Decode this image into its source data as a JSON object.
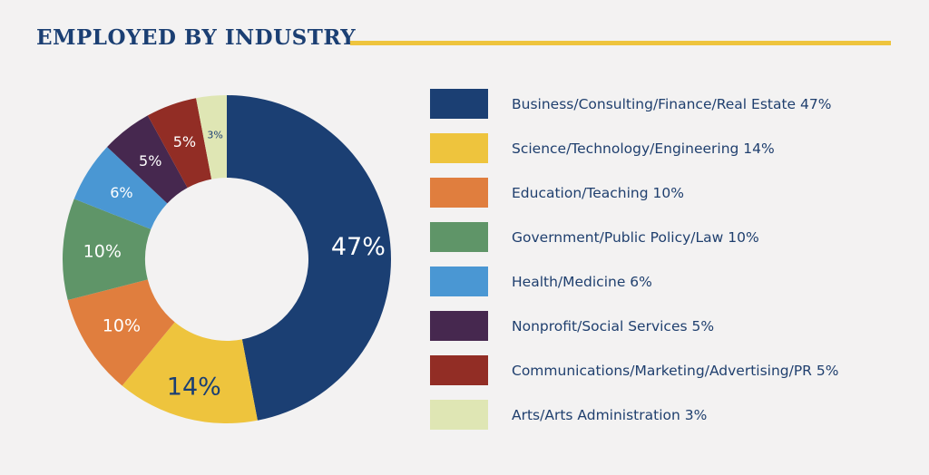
{
  "title": "EMPLOYED BY INDUSTRY",
  "chart_data": {
    "type": "pie",
    "title": "EMPLOYED BY INDUSTRY",
    "legend_position": "right",
    "slices": [
      {
        "label": "Business/Consulting/Finance/Real Estate",
        "value": 47,
        "value_label": "47%",
        "legend_text": "Business/Consulting/Finance/Real Estate 47%",
        "color": "#1b3f73",
        "label_color": "#ffffff",
        "label_scale": "large"
      },
      {
        "label": "Science/Technology/Engineering",
        "value": 14,
        "value_label": "14%",
        "legend_text": "Science/Technology/Engineering 14%",
        "color": "#eec43d",
        "label_color": "#1b3f73",
        "label_scale": "large"
      },
      {
        "label": "Education/Teaching",
        "value": 10,
        "value_label": "10%",
        "legend_text": "Education/Teaching 10%",
        "color": "#e07e3e",
        "label_color": "#ffffff",
        "label_scale": "medium"
      },
      {
        "label": "Government/Public Policy/Law",
        "value": 10,
        "value_label": "10%",
        "legend_text": "Government/Public Policy/Law 10%",
        "color": "#5f9568",
        "label_color": "#ffffff",
        "label_scale": "medium"
      },
      {
        "label": "Health/Medicine",
        "value": 6,
        "value_label": "6%",
        "legend_text": "Health/Medicine 6%",
        "color": "#4a97d3",
        "label_color": "#ffffff",
        "label_scale": "small"
      },
      {
        "label": "Nonprofit/Social Services",
        "value": 5,
        "value_label": "5%",
        "legend_text": "Nonprofit/Social Services 5%",
        "color": "#46284f",
        "label_color": "#ffffff",
        "label_scale": "small"
      },
      {
        "label": "Communications/Marketing/Advertising/PR",
        "value": 5,
        "value_label": "5%",
        "legend_text": "Communications/Marketing/Advertising/PR 5%",
        "color": "#922d25",
        "label_color": "#ffffff",
        "label_scale": "small"
      },
      {
        "label": "Arts/Arts Administration",
        "value": 3,
        "value_label": "3%",
        "legend_text": "Arts/Arts Administration 3%",
        "color": "#dfe6b4",
        "label_color": "#1b3f73",
        "label_scale": "tiny"
      }
    ]
  }
}
